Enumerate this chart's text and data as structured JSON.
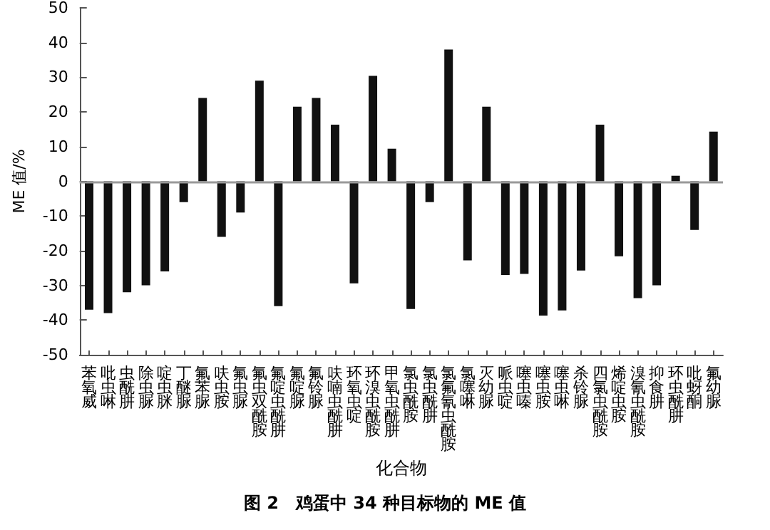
{
  "chart_data": {
    "type": "bar",
    "title": "图 2　鸡蛋中 34 种目标物的 ME 值",
    "xlabel": "化合物",
    "ylabel": "ME 值/%",
    "categories": [
      "苯氧威",
      "吡虫啉",
      "虫酰肼",
      "除虫脲",
      "啶虫脒",
      "丁醚脲",
      "氟苯脲",
      "呋虫胺",
      "氟虫脲",
      "氟虫双酰胺",
      "氟啶虫酰肼",
      "氟啶脲",
      "氟铃脲",
      "呋喃虫酰肼",
      "环氧虫啶",
      "环溴虫酰胺",
      "甲氧虫酰肼",
      "氯虫酰胺",
      "氯虫酰肼",
      "氯氟氰虫酰胺",
      "氯噻啉",
      "灭幼脲",
      "哌虫啶",
      "噻虫嗪",
      "噻虫胺",
      "噻虫啉",
      "杀铃脲",
      "四氯虫酰胺",
      "烯啶虫胺",
      "溴氰虫酰胺",
      "抑食肼",
      "环虫酰肼",
      "吡蚜酮",
      "氟幼脲"
    ],
    "values": [
      -37,
      -38,
      -32,
      -30,
      -26,
      -6,
      24,
      -16,
      -9,
      29,
      -36,
      21.5,
      24,
      16.3,
      -29.4,
      30.4,
      9.4,
      -36.8,
      -6,
      38,
      -22.8,
      21.5,
      -27,
      -26.7,
      -38.7,
      -37.2,
      -25.7,
      16.3,
      -21.6,
      -33.7,
      -30,
      1.6,
      -14,
      14.3
    ],
    "color": "#111111",
    "ylim": [
      -50,
      50
    ],
    "yticks": [
      -50,
      -40,
      -30,
      -20,
      -10,
      0,
      10,
      20,
      30,
      40,
      50
    ],
    "grid": false,
    "ref_lines": [
      {
        "axis": "y",
        "value": 0,
        "color": "#999999"
      }
    ]
  }
}
